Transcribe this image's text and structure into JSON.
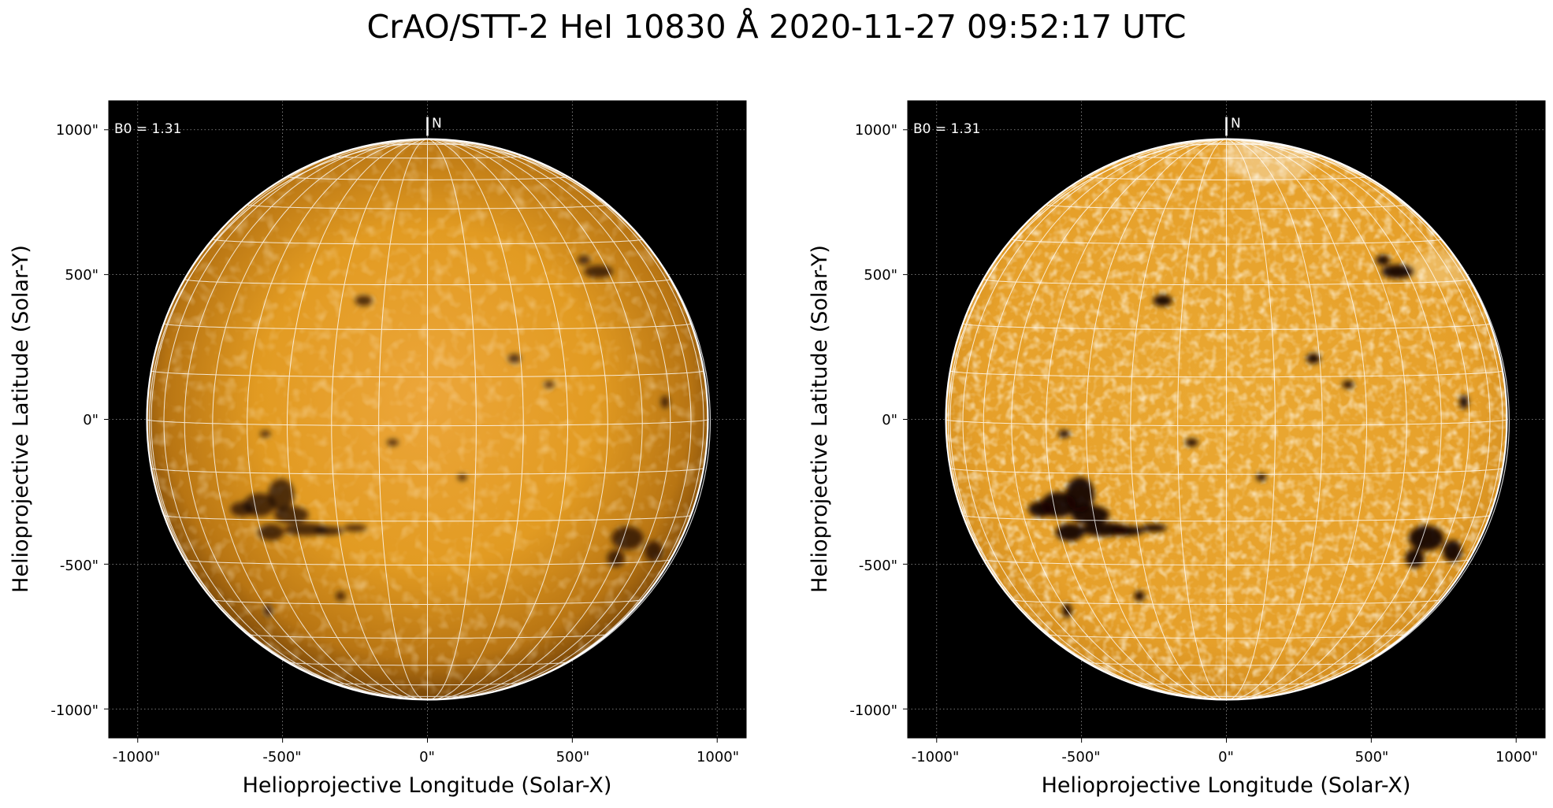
{
  "figure": {
    "title": "CrAO/STT-2 HeI 10830 Å 2020-11-27 09:52:17 UTC"
  },
  "colors": {
    "background": "#000000",
    "disk_plain_center": "#e29b22",
    "disk_plain_limb": "#6e3e06",
    "disk_enhanced": "#e6a02a",
    "grid": "#ffffff",
    "feature_dark": "#120700"
  },
  "panels": [
    {
      "id": "left",
      "variant": "plain",
      "xlabel": "Helioprojective Longitude (Solar-X)",
      "ylabel": "Helioprojective Latitude (Solar-Y)",
      "xticks": [
        "-1000\"",
        "-500\"",
        "0\"",
        "500\"",
        "1000\""
      ],
      "yticks": [
        "1000\"",
        "500\"",
        "0\"",
        "-500\"",
        "-1000\""
      ],
      "b0_label": "B0 = 1.31",
      "north_label": "N"
    },
    {
      "id": "right",
      "variant": "enhanced",
      "xlabel": "Helioprojective Longitude (Solar-X)",
      "ylabel": "Helioprojective Latitude (Solar-Y)",
      "xticks": [
        "-1000\"",
        "-500\"",
        "0\"",
        "500\"",
        "1000\""
      ],
      "yticks": [
        "1000\"",
        "500\"",
        "0\"",
        "-500\"",
        "-1000\""
      ],
      "b0_label": "B0 = 1.31",
      "north_label": "N"
    }
  ],
  "image_scale": {
    "tick_values_arcsec": [
      -1000,
      -500,
      0,
      500,
      1000
    ],
    "axis_range_arcsec": [
      -1100,
      1100
    ],
    "solar_radius_arcsec": 968,
    "b0_deg": 1.31,
    "longitude_grid_step_deg": 10,
    "latitude_grid_step_deg": 10
  },
  "dark_features": [
    {
      "x": -505,
      "y": -260,
      "rx": 45,
      "ry": 55
    },
    {
      "x": -580,
      "y": -295,
      "rx": 55,
      "ry": 40
    },
    {
      "x": -640,
      "y": -310,
      "rx": 40,
      "ry": 25
    },
    {
      "x": -470,
      "y": -330,
      "rx": 60,
      "ry": 30
    },
    {
      "x": -420,
      "y": -380,
      "rx": 75,
      "ry": 22
    },
    {
      "x": -340,
      "y": -385,
      "rx": 50,
      "ry": 16
    },
    {
      "x": -250,
      "y": -375,
      "rx": 40,
      "ry": 12
    },
    {
      "x": -540,
      "y": -390,
      "rx": 45,
      "ry": 28
    },
    {
      "x": -560,
      "y": -50,
      "rx": 18,
      "ry": 12
    },
    {
      "x": -550,
      "y": -660,
      "rx": 14,
      "ry": 22
    },
    {
      "x": -300,
      "y": -610,
      "rx": 16,
      "ry": 16
    },
    {
      "x": 690,
      "y": -410,
      "rx": 55,
      "ry": 40
    },
    {
      "x": 650,
      "y": -480,
      "rx": 30,
      "ry": 30
    },
    {
      "x": 780,
      "y": -455,
      "rx": 30,
      "ry": 35
    },
    {
      "x": 590,
      "y": 510,
      "rx": 50,
      "ry": 22
    },
    {
      "x": 540,
      "y": 550,
      "rx": 22,
      "ry": 16
    },
    {
      "x": -220,
      "y": 410,
      "rx": 30,
      "ry": 18
    },
    {
      "x": 300,
      "y": 210,
      "rx": 22,
      "ry": 16
    },
    {
      "x": 420,
      "y": 120,
      "rx": 18,
      "ry": 12
    },
    {
      "x": -120,
      "y": -80,
      "rx": 20,
      "ry": 12
    },
    {
      "x": 120,
      "y": -200,
      "rx": 16,
      "ry": 12
    },
    {
      "x": 820,
      "y": 60,
      "rx": 14,
      "ry": 22
    }
  ]
}
